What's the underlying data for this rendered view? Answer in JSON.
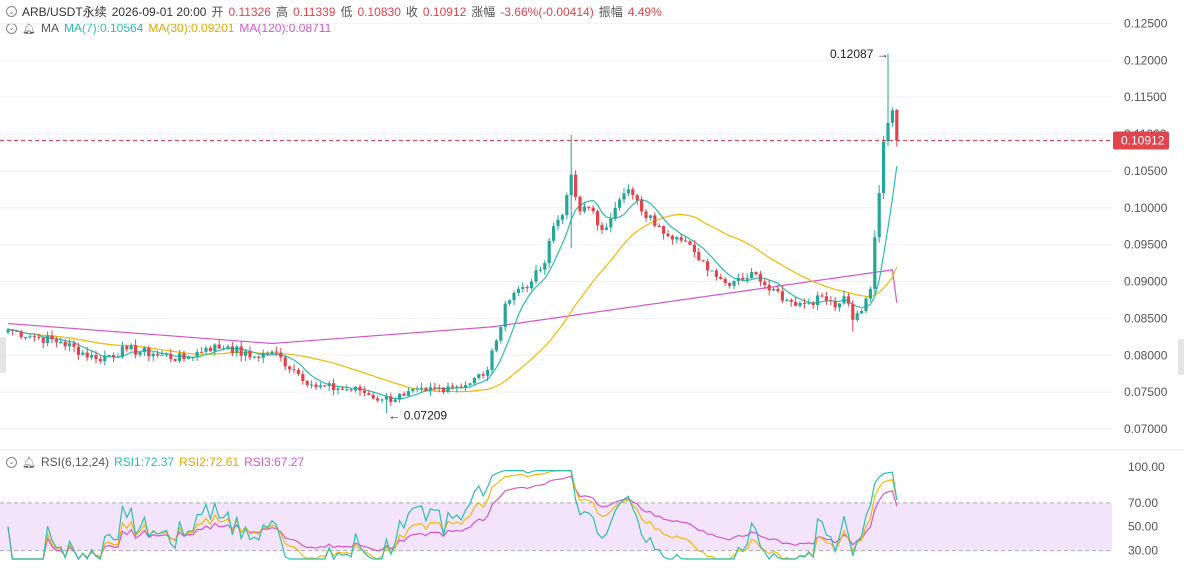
{
  "header": {
    "symbol": "ARB/USDT永续",
    "datetime": "2026-09-01 20:00",
    "open_label": "开",
    "open": "0.11326",
    "high_label": "高",
    "high": "0.11339",
    "low_label": "低",
    "low": "0.10830",
    "close_label": "收",
    "close": "0.10912",
    "change_label": "涨幅",
    "change": "-3.66%(-0.00414)",
    "amplitude_label": "振幅",
    "amplitude": "4.49%"
  },
  "ma_legend": {
    "name": "MA",
    "ma7": "MA(7):0.10564",
    "ma30": "MA(30):0.09201",
    "ma120": "MA(120):0.08711"
  },
  "rsi_legend": {
    "name": "RSI(6,12,24)",
    "rsi1": "RSI1:72.37",
    "rsi2": "RSI2:72.61",
    "rsi3": "RSI3:67.27"
  },
  "colors": {
    "up": "#26a69a",
    "down": "#e0444c",
    "ma7": "#2bbfae",
    "ma30": "#f0b90b",
    "ma120": "#d357c8",
    "rsi_band": "#f3e4fb",
    "price_tag": "#e0444c"
  },
  "chart_data": [
    {
      "type": "candlestick",
      "title": "",
      "price_axis_ticks": [
        "0.12500",
        "0.12000",
        "0.11500",
        "0.11000",
        "0.10500",
        "0.10000",
        "0.09500",
        "0.09000",
        "0.08500",
        "0.08000",
        "0.07500",
        "0.07000"
      ],
      "ylim": [
        0.0677,
        0.126
      ],
      "last_price": "0.10912",
      "annotations": [
        {
          "text": "0.12087",
          "value": 0.12087,
          "type": "high"
        },
        {
          "text": "0.07209",
          "value": 0.07209,
          "type": "low"
        }
      ],
      "anchors_close": [
        [
          0,
          0.0835
        ],
        [
          6,
          0.0825
        ],
        [
          12,
          0.0818
        ],
        [
          20,
          0.0795
        ],
        [
          27,
          0.0808
        ],
        [
          33,
          0.0802
        ],
        [
          40,
          0.0795
        ],
        [
          45,
          0.081
        ],
        [
          50,
          0.0812
        ],
        [
          55,
          0.0797
        ],
        [
          60,
          0.0805
        ],
        [
          65,
          0.078
        ],
        [
          70,
          0.0757
        ],
        [
          75,
          0.0755
        ],
        [
          80,
          0.0752
        ],
        [
          85,
          0.074
        ],
        [
          90,
          0.0745
        ],
        [
          95,
          0.0752
        ],
        [
          100,
          0.0758
        ],
        [
          105,
          0.0762
        ],
        [
          109,
          0.078
        ],
        [
          111,
          0.082
        ],
        [
          113,
          0.087
        ],
        [
          116,
          0.089
        ],
        [
          119,
          0.09
        ],
        [
          122,
          0.0925
        ],
        [
          124,
          0.0975
        ],
        [
          126,
          0.099
        ],
        [
          128,
          0.1045
        ],
        [
          130,
          0.0995
        ],
        [
          132,
          0.1
        ],
        [
          135,
          0.097
        ],
        [
          138,
          0.1
        ],
        [
          141,
          0.1025
        ],
        [
          144,
          0.0995
        ],
        [
          148,
          0.0975
        ],
        [
          152,
          0.096
        ],
        [
          156,
          0.094
        ],
        [
          160,
          0.0915
        ],
        [
          163,
          0.0898
        ],
        [
          166,
          0.0905
        ],
        [
          170,
          0.091
        ],
        [
          174,
          0.089
        ],
        [
          177,
          0.0875
        ],
        [
          181,
          0.087
        ],
        [
          185,
          0.088
        ],
        [
          188,
          0.0865
        ],
        [
          190,
          0.088
        ],
        [
          192,
          0.0848
        ],
        [
          194,
          0.086
        ],
        [
          196,
          0.089
        ],
        [
          197,
          0.096
        ],
        [
          198,
          0.102
        ],
        [
          199,
          0.109
        ],
        [
          200,
          0.1115
        ],
        [
          201,
          0.1132
        ],
        [
          202,
          0.1091
        ]
      ],
      "series": [
        {
          "name": "MA(7)",
          "current": 0.10564
        },
        {
          "name": "MA(30)",
          "current": 0.09201
        },
        {
          "name": "MA(120)",
          "current": 0.08711
        }
      ]
    },
    {
      "type": "line",
      "title": "",
      "rsi_axis_ticks": [
        "100.00",
        "70.00",
        "50.00",
        "30.00"
      ],
      "ylim": [
        23,
        100
      ],
      "overbought": 70,
      "oversold": 30,
      "series": [
        {
          "name": "RSI1",
          "current": 72.37
        },
        {
          "name": "RSI2",
          "current": 72.61
        },
        {
          "name": "RSI3",
          "current": 67.27
        }
      ]
    }
  ]
}
